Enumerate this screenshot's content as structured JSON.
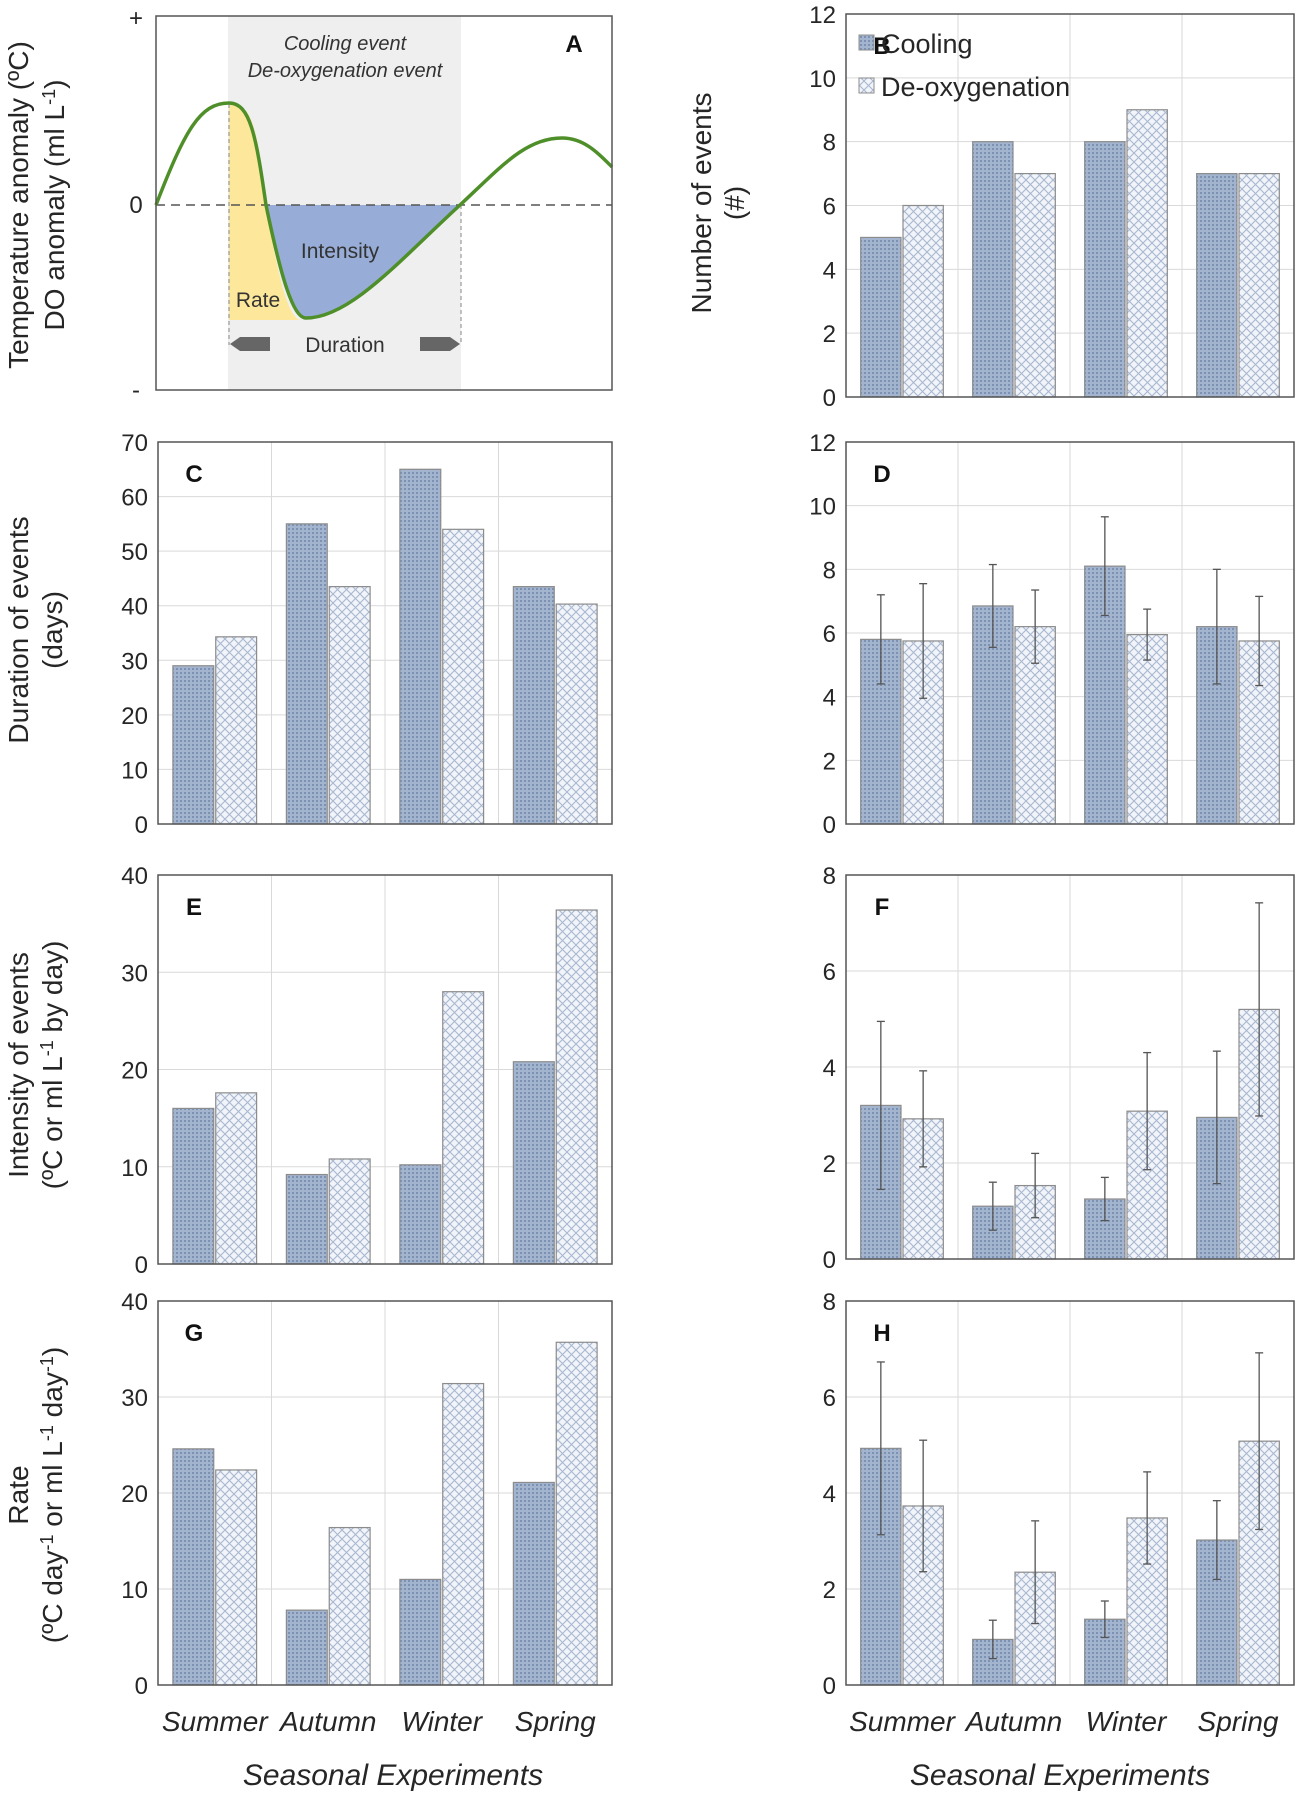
{
  "colors": {
    "cooling_fill": "#a3b4cf",
    "cooling_pattern": "#7d91b3",
    "deox_fill": "#eef2f8",
    "deox_pattern": "#a9b8d0",
    "bar_edge": "#8c8c8c",
    "grid": "#d9d9d9",
    "curve": "#4f8f2a",
    "rate_fill": "#fde79a",
    "intensity_fill": "#97add7",
    "event_band": "#efefef"
  },
  "x_title": "Seasonal Experiments",
  "chart_data": [
    {
      "id": "A",
      "type": "diagram",
      "panel_label": "A",
      "ylabel_line1": "Temperature anomaly (ºC)",
      "ylabel_line2_prefix": "DO anomaly (ml L",
      "ylabel_line2_sup": "-1",
      "ylabel_line2_suffix": ")",
      "tick_plus": "+",
      "tick_zero": "0",
      "tick_minus": "-",
      "event_title_1": "Cooling event",
      "event_title_2": "De-oxygenation event",
      "rate_label": "Rate",
      "intensity_label": "Intensity",
      "duration_label": "Duration"
    },
    {
      "id": "B",
      "type": "bar",
      "panel_label": "B",
      "categories": [
        "Summer",
        "Autumn",
        "Winter",
        "Spring"
      ],
      "ylim": [
        0,
        12
      ],
      "yticks": [
        0,
        2,
        4,
        6,
        8,
        10,
        12
      ],
      "ylabel_line1": "Number of events",
      "ylabel_line2": "(#)",
      "legend": [
        "Cooling",
        "De-oxygenation"
      ],
      "series": [
        {
          "name": "Cooling",
          "values": [
            5,
            8,
            8,
            7
          ]
        },
        {
          "name": "De-oxygenation",
          "values": [
            6,
            7,
            9,
            7
          ]
        }
      ]
    },
    {
      "id": "C",
      "type": "bar",
      "panel_label": "C",
      "categories": [
        "Summer",
        "Autumn",
        "Winter",
        "Spring"
      ],
      "ylim": [
        0,
        70
      ],
      "yticks": [
        0,
        10,
        20,
        30,
        40,
        50,
        60,
        70
      ],
      "ylabel_line1": "Duration of events",
      "ylabel_line2": "(days)",
      "series": [
        {
          "name": "Cooling",
          "values": [
            29,
            55,
            65,
            43.5
          ]
        },
        {
          "name": "De-oxygenation",
          "values": [
            34.3,
            43.5,
            54,
            40.3
          ]
        }
      ]
    },
    {
      "id": "D",
      "type": "bar",
      "panel_label": "D",
      "categories": [
        "Summer",
        "Autumn",
        "Winter",
        "Spring"
      ],
      "ylim": [
        0,
        12
      ],
      "yticks": [
        0,
        2,
        4,
        6,
        8,
        10,
        12
      ],
      "series": [
        {
          "name": "Cooling",
          "values": [
            5.8,
            6.85,
            8.1,
            6.2
          ],
          "error": [
            1.4,
            1.3,
            1.55,
            1.8
          ]
        },
        {
          "name": "De-oxygenation",
          "values": [
            5.75,
            6.2,
            5.95,
            5.75
          ],
          "error": [
            1.8,
            1.15,
            0.8,
            1.4
          ]
        }
      ]
    },
    {
      "id": "E",
      "type": "bar",
      "panel_label": "E",
      "categories": [
        "Summer",
        "Autumn",
        "Winter",
        "Spring"
      ],
      "ylim": [
        0,
        40
      ],
      "yticks": [
        0,
        10,
        20,
        30,
        40
      ],
      "ylabel_line1": "Intensity of events",
      "ylabel_line2_prefix": "(ºC or ml L",
      "ylabel_line2_sup": "-1",
      "ylabel_line2_suffix": " by day)",
      "series": [
        {
          "name": "Cooling",
          "values": [
            16,
            9.2,
            10.2,
            20.8
          ]
        },
        {
          "name": "De-oxygenation",
          "values": [
            17.6,
            10.8,
            28,
            36.4
          ]
        }
      ]
    },
    {
      "id": "F",
      "type": "bar",
      "panel_label": "F",
      "categories": [
        "Summer",
        "Autumn",
        "Winter",
        "Spring"
      ],
      "ylim": [
        0,
        8
      ],
      "yticks": [
        0,
        2,
        4,
        6,
        8
      ],
      "series": [
        {
          "name": "Cooling",
          "values": [
            3.2,
            1.1,
            1.25,
            2.95
          ],
          "error": [
            1.75,
            0.5,
            0.45,
            1.38
          ]
        },
        {
          "name": "De-oxygenation",
          "values": [
            2.92,
            1.53,
            3.08,
            5.2
          ],
          "error": [
            1.0,
            0.67,
            1.22,
            2.22
          ]
        }
      ]
    },
    {
      "id": "G",
      "type": "bar",
      "panel_label": "G",
      "categories": [
        "Summer",
        "Autumn",
        "Winter",
        "Spring"
      ],
      "ylim": [
        0,
        40
      ],
      "yticks": [
        0,
        10,
        20,
        30,
        40
      ],
      "ylabel_line1": "Rate",
      "ylabel_line2_a": "(ºC day",
      "ylabel_line2_sup1": "-1",
      "ylabel_line2_b": " or ml L",
      "ylabel_line2_sup2": "-1",
      "ylabel_line2_c": " day",
      "ylabel_line2_sup3": "-1",
      "ylabel_line2_d": ")",
      "series": [
        {
          "name": "Cooling",
          "values": [
            24.6,
            7.8,
            11,
            21.1
          ]
        },
        {
          "name": "De-oxygenation",
          "values": [
            22.4,
            16.4,
            31.4,
            35.7
          ]
        }
      ]
    },
    {
      "id": "H",
      "type": "bar",
      "panel_label": "H",
      "categories": [
        "Summer",
        "Autumn",
        "Winter",
        "Spring"
      ],
      "ylim": [
        0,
        8
      ],
      "yticks": [
        0,
        2,
        4,
        6,
        8
      ],
      "series": [
        {
          "name": "Cooling",
          "values": [
            4.93,
            0.95,
            1.37,
            3.02
          ],
          "error": [
            1.8,
            0.4,
            0.38,
            0.82
          ]
        },
        {
          "name": "De-oxygenation",
          "values": [
            3.73,
            2.35,
            3.48,
            5.08
          ],
          "error": [
            1.37,
            1.07,
            0.96,
            1.84
          ]
        }
      ]
    }
  ]
}
